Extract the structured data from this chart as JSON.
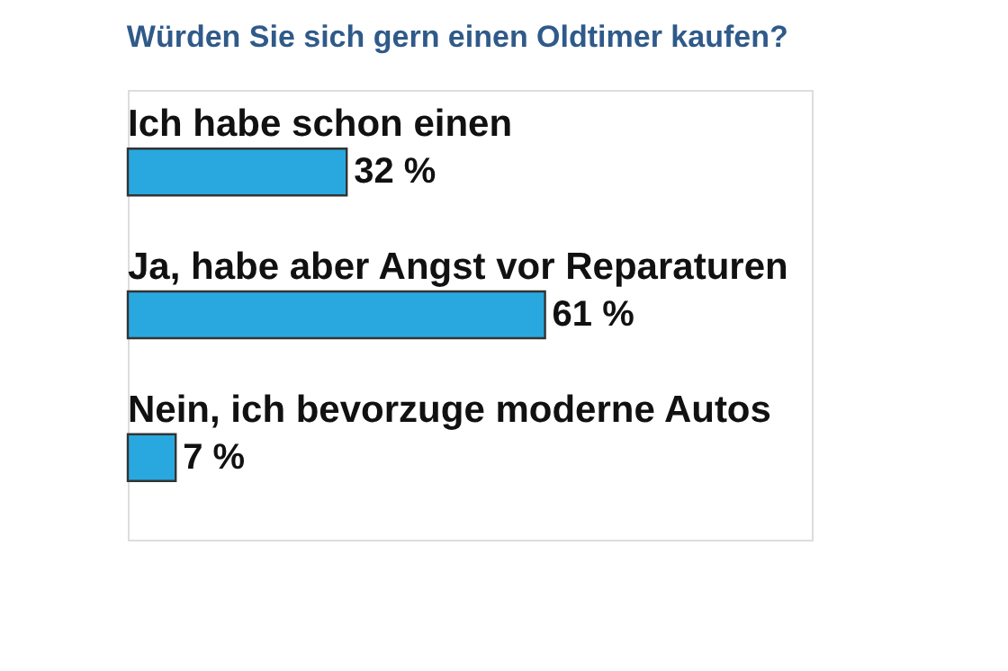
{
  "chart_data": {
    "type": "bar",
    "orientation": "horizontal",
    "title": "Würden Sie sich gern einen Oldtimer kaufen?",
    "categories": [
      "Ich habe schon einen",
      "Ja, habe aber Angst vor Reparaturen",
      "Nein, ich bevorzuge moderne Autos"
    ],
    "values": [
      32,
      61,
      7
    ],
    "value_labels": [
      "32 %",
      "61 %",
      "7 %"
    ],
    "color": "#29a8e0",
    "xlim": [
      0,
      100
    ],
    "tick_labels": false,
    "grid": false
  }
}
